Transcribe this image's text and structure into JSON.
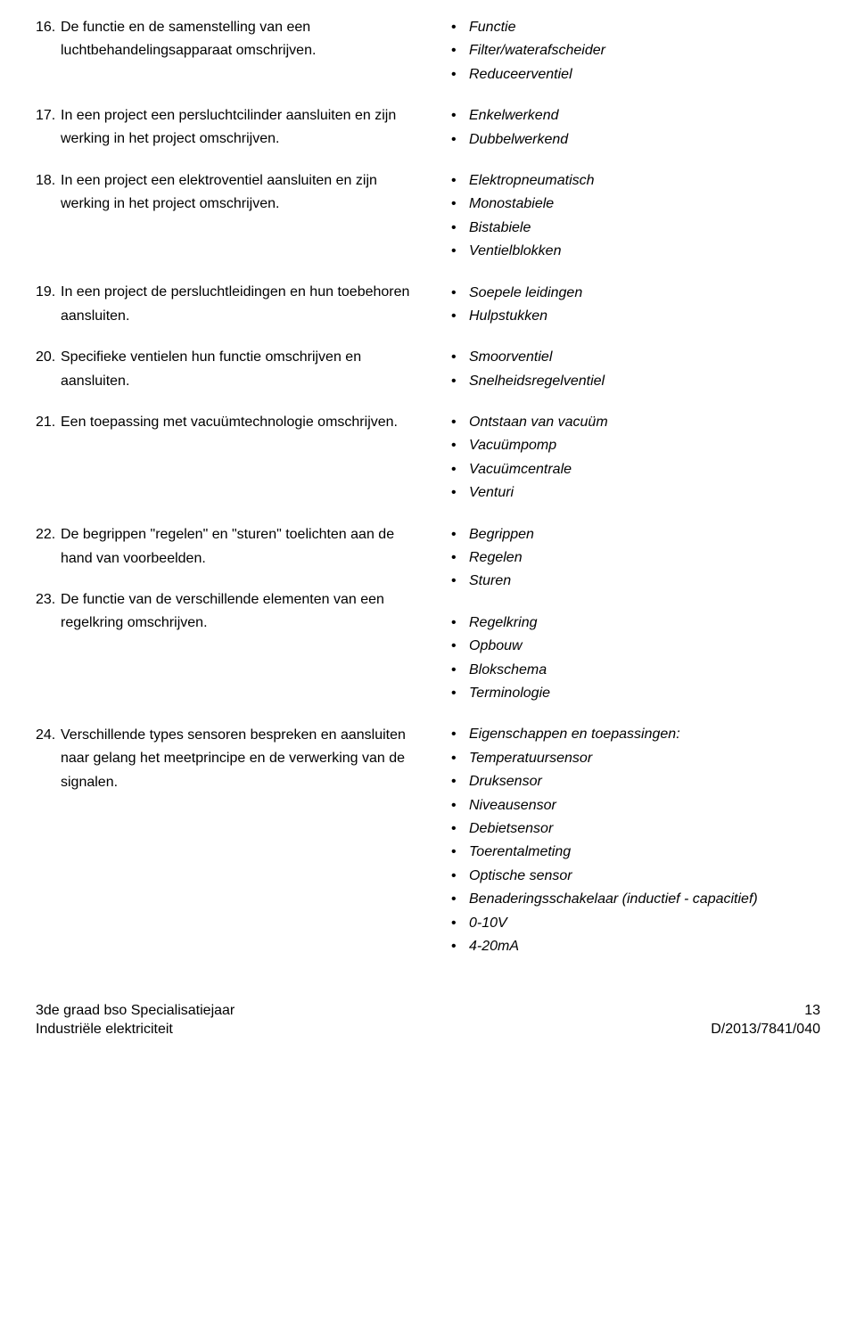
{
  "rows": [
    {
      "num": "16.",
      "text": "De functie en de samenstelling van een luchtbehandelingsapparaat omschrijven.",
      "bullets": [
        "Functie",
        "Filter/waterafscheider",
        "Reduceerventiel"
      ]
    },
    {
      "num": "17.",
      "text": "In een project een persluchtcilinder aansluiten en zijn werking in het project omschrijven.",
      "bullets": [
        "Enkelwerkend",
        "Dubbelwerkend"
      ]
    },
    {
      "num": "18.",
      "text": "In een project een elektroventiel aansluiten en zijn werking in het project omschrijven.",
      "bullets": [
        "Elektropneumatisch",
        "Monostabiele",
        "Bistabiele",
        "Ventielblokken"
      ]
    },
    {
      "num": "19.",
      "text": "In een project de persluchtleidingen en hun toebehoren aansluiten.",
      "bullets": [
        "Soepele leidingen",
        "Hulpstukken"
      ]
    },
    {
      "num": "20.",
      "text": "Specifieke ventielen hun functie omschrijven en aansluiten.",
      "bullets": [
        "Smoorventiel",
        "Snelheidsregelventiel"
      ]
    },
    {
      "num": "21.",
      "text": "Een toepassing met vacuümtechnologie omschrijven.",
      "bullets": [
        "Ontstaan van vacuüm",
        "Vacuümpomp",
        "Vacuümcentrale",
        "Venturi"
      ]
    },
    {
      "num": "22.",
      "text": "De begrippen \"regelen\" en \"sturen\" toelichten aan de hand van voorbeelden.",
      "bullets": [
        "Begrippen",
        "Regelen",
        "Sturen"
      ],
      "combinedWithNext": true
    },
    {
      "num": "23.",
      "text": "De functie van de verschillende elementen van een regelkring omschrijven.",
      "bullets": [
        "Regelkring",
        "Opbouw",
        "Blokschema",
        "Terminologie"
      ]
    },
    {
      "num": "24.",
      "text": "Verschillende types sensoren bespreken en aansluiten naar gelang het meetprincipe en de verwerking van de signalen.",
      "bullets": [
        "Eigenschappen en toepassingen:",
        "Temperatuursensor",
        "Druksensor",
        "Niveausensor",
        "Debietsensor",
        "Toerentalmeting",
        "Optische sensor",
        "Benaderingsschakelaar (inductief - capacitief)",
        "0-10V",
        "4-20mA"
      ]
    }
  ],
  "footer": {
    "left_line1": "3de graad bso Specialisatiejaar",
    "left_line2": "Industriële elektriciteit",
    "right_line1": "13",
    "right_line2": "D/2013/7841/040"
  }
}
